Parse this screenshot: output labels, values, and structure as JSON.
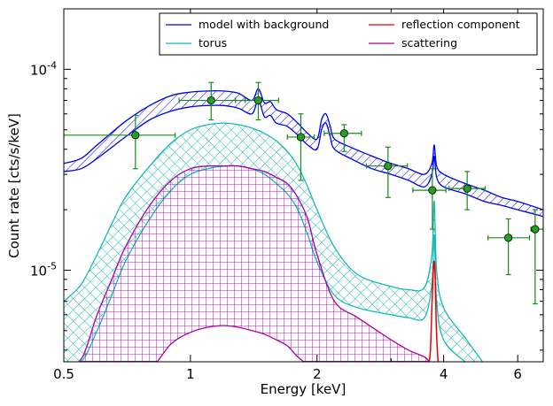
{
  "chart_data": {
    "type": "line",
    "xlabel": "Energy [keV]",
    "ylabel": "Count rate [cts/s/keV]",
    "xscale": "log",
    "yscale": "log",
    "xlim": [
      0.5,
      6.9
    ],
    "ylim": [
      3.5e-06,
      0.0002
    ],
    "grid": false,
    "legend_position": "top-right",
    "x_ticks": [
      {
        "value": 0.5,
        "label": "0.5"
      },
      {
        "value": 1,
        "label": "1"
      },
      {
        "value": 2,
        "label": "2"
      },
      {
        "value": 4,
        "label": "4"
      },
      {
        "value": 6,
        "label": "6"
      }
    ],
    "y_ticks": [
      {
        "value": 1e-05,
        "base": "10",
        "exp": "-5"
      },
      {
        "value": 0.0001,
        "base": "10",
        "exp": "-4"
      }
    ],
    "series": [
      {
        "name": "model with background",
        "color": "#0000ee",
        "hatch": "diagonal",
        "x": [
          0.5,
          0.55,
          0.6,
          0.7,
          0.8,
          0.9,
          1.0,
          1.1,
          1.2,
          1.3,
          1.4,
          1.45,
          1.5,
          1.55,
          1.6,
          1.7,
          1.8,
          1.9,
          2.0,
          2.05,
          2.1,
          2.15,
          2.2,
          2.4,
          2.7,
          3.0,
          3.3,
          3.6,
          3.75,
          3.8,
          3.85,
          4.0,
          4.5,
          5.0,
          5.5,
          6.0,
          6.9
        ],
        "upper": [
          3.4e-05,
          3.6e-05,
          4.2e-05,
          5.5e-05,
          6.6e-05,
          7.4e-05,
          7.7e-05,
          7.8e-05,
          7.8e-05,
          7.6e-05,
          7e-05,
          8e-05,
          6.8e-05,
          6.9e-05,
          6.3e-05,
          6e-05,
          5.4e-05,
          4.8e-05,
          4.5e-05,
          5.6e-05,
          6e-05,
          5.2e-05,
          4.5e-05,
          4.1e-05,
          3.7e-05,
          3.4e-05,
          3.2e-05,
          3e-05,
          3.4e-05,
          4.2e-05,
          3.3e-05,
          3e-05,
          2.7e-05,
          2.5e-05,
          2.3e-05,
          2.2e-05,
          2e-05
        ],
        "lower": [
          3.1e-05,
          3.2e-05,
          3.6e-05,
          4.6e-05,
          5.6e-05,
          6.2e-05,
          6.5e-05,
          6.6e-05,
          6.6e-05,
          6.4e-05,
          6e-05,
          7e-05,
          5.8e-05,
          5.9e-05,
          5.4e-05,
          5.2e-05,
          4.7e-05,
          4.2e-05,
          4e-05,
          5e-05,
          5.4e-05,
          4.6e-05,
          4e-05,
          3.6e-05,
          3.2e-05,
          3e-05,
          2.8e-05,
          2.6e-05,
          3e-05,
          3.7e-05,
          2.9e-05,
          2.6e-05,
          2.4e-05,
          2.2e-05,
          2.1e-05,
          2e-05,
          1.85e-05
        ]
      },
      {
        "name": "torus",
        "color": "#1ab8b8",
        "hatch": "crosshatch",
        "x": [
          0.5,
          0.55,
          0.6,
          0.65,
          0.7,
          0.8,
          0.9,
          1.0,
          1.1,
          1.2,
          1.3,
          1.4,
          1.5,
          1.6,
          1.7,
          1.8,
          1.9,
          2.0,
          2.2,
          2.5,
          3.0,
          3.3,
          3.6,
          3.75,
          3.8,
          3.85,
          4.0,
          4.5,
          5.0
        ],
        "upper": [
          7e-06,
          8.5e-06,
          1.2e-05,
          1.7e-05,
          2.3e-05,
          3.3e-05,
          4.3e-05,
          5e-05,
          5.3e-05,
          5.4e-05,
          5.3e-05,
          5.1e-05,
          4.8e-05,
          4.4e-05,
          3.9e-05,
          3.3e-05,
          2.6e-05,
          2e-05,
          1.3e-05,
          9.5e-06,
          8.3e-06,
          8e-06,
          8.2e-06,
          1.2e-05,
          2.2e-05,
          1e-05,
          6.5e-06,
          4.6e-06,
          3.4e-06
        ],
        "lower": [
          3.5e-06,
          3.5e-06,
          5e-06,
          7.5e-06,
          1.1e-05,
          1.8e-05,
          2.5e-05,
          3e-05,
          3.2e-05,
          3.3e-05,
          3.3e-05,
          3.2e-05,
          3e-05,
          2.7e-05,
          2.4e-05,
          2e-05,
          1.5e-05,
          1.1e-05,
          7.5e-06,
          6.5e-06,
          6e-06,
          5.8e-06,
          5.8e-06,
          8.5e-06,
          1.5e-05,
          7e-06,
          4.5e-06,
          3.5e-06,
          3e-06
        ]
      },
      {
        "name": "reflection component",
        "color": "#ee0000",
        "hatch": "none",
        "x": [
          3.68,
          3.72,
          3.75,
          3.78,
          3.8,
          3.82,
          3.84,
          3.87,
          3.9
        ],
        "values": [
          3.3e-06,
          4e-06,
          6.5e-06,
          1e-05,
          1.1e-05,
          9e-06,
          5.5e-06,
          3.8e-06,
          3.3e-06
        ]
      },
      {
        "name": "scattering",
        "color": "#aa00aa",
        "hatch": "grid",
        "x": [
          0.5,
          0.55,
          0.6,
          0.65,
          0.7,
          0.8,
          0.9,
          1.0,
          1.1,
          1.2,
          1.3,
          1.4,
          1.5,
          1.6,
          1.7,
          1.8,
          1.9,
          2.0,
          2.2,
          2.5,
          3.0,
          3.3,
          3.6,
          3.7
        ],
        "upper": [
          3.3e-06,
          3.6e-06,
          6e-06,
          9e-06,
          1.3e-05,
          2.1e-05,
          2.8e-05,
          3.2e-05,
          3.3e-05,
          3.3e-05,
          3.3e-05,
          3.2e-05,
          3.1e-05,
          2.9e-05,
          2.7e-05,
          2.3e-05,
          1.8e-05,
          1.2e-05,
          7e-06,
          5.8e-06,
          4.5e-06,
          4e-06,
          3.7e-06,
          3.5e-06
        ],
        "lower": [
          3e-06,
          3e-06,
          3e-06,
          3e-06,
          3e-06,
          3.2e-06,
          4.3e-06,
          4.9e-06,
          5.2e-06,
          5.3e-06,
          5.2e-06,
          5e-06,
          4.8e-06,
          4.5e-06,
          4.2e-06,
          3.7e-06,
          3.4e-06,
          3.2e-06,
          3.1e-06,
          3e-06,
          3e-06,
          3e-06,
          3e-06,
          3e-06
        ]
      }
    ],
    "data_points": {
      "color": "#1a8a1a",
      "points": [
        {
          "x": 0.74,
          "y": 4.7e-05,
          "xlo": 0.5,
          "xhi": 0.92,
          "ylo": 3.2e-05,
          "yhi": 5.9e-05
        },
        {
          "x": 1.12,
          "y": 7e-05,
          "xlo": 0.94,
          "xhi": 1.35,
          "ylo": 5.6e-05,
          "yhi": 8.6e-05
        },
        {
          "x": 1.45,
          "y": 7e-05,
          "xlo": 1.28,
          "xhi": 1.62,
          "ylo": 5.6e-05,
          "yhi": 8.6e-05
        },
        {
          "x": 1.83,
          "y": 4.6e-05,
          "xlo": 1.7,
          "xhi": 1.97,
          "ylo": 2.8e-05,
          "yhi": 6e-05
        },
        {
          "x": 2.32,
          "y": 4.8e-05,
          "xlo": 2.08,
          "xhi": 2.55,
          "ylo": 3.9e-05,
          "yhi": 5.3e-05
        },
        {
          "x": 2.95,
          "y": 3.3e-05,
          "xlo": 2.62,
          "xhi": 3.28,
          "ylo": 2.3e-05,
          "yhi": 4.1e-05
        },
        {
          "x": 3.76,
          "y": 2.5e-05,
          "xlo": 3.38,
          "xhi": 4.05,
          "ylo": 1.6e-05,
          "yhi": 3.2e-05
        },
        {
          "x": 4.55,
          "y": 2.55e-05,
          "xlo": 4.12,
          "xhi": 5.02,
          "ylo": 2e-05,
          "yhi": 3.1e-05
        },
        {
          "x": 5.7,
          "y": 1.45e-05,
          "xlo": 5.1,
          "xhi": 6.4,
          "ylo": 9.5e-06,
          "yhi": 1.8e-05
        },
        {
          "x": 6.6,
          "y": 1.6e-05,
          "xlo": 6.45,
          "xhi": 6.9,
          "ylo": 6.8e-06,
          "yhi": 2e-05
        }
      ]
    }
  }
}
